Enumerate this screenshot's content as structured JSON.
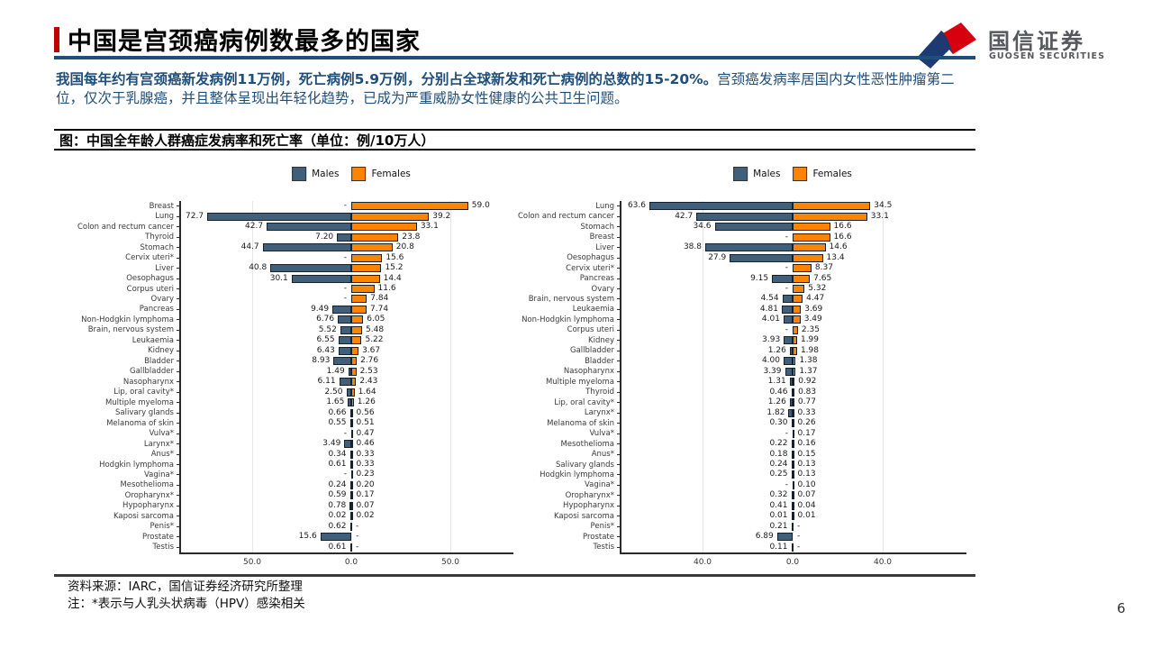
{
  "page": {
    "number": "6"
  },
  "header": {
    "title": "中国是宫颈癌病例数最多的国家",
    "logo": {
      "cn": "国信证券",
      "en": "GUOSEN SECURITIES"
    }
  },
  "intro": {
    "lead": "我国每年约有宫颈癌新发病例11万例，死亡病例5.9万例，分别占全球新发和死亡病例的总数的15-20%。",
    "rest": "宫颈癌发病率居国内女性恶性肿瘤第二位，仅次于乳腺癌，并且整体呈现出年轻化趋势，已成为严重威胁女性健康的公共卫生问题。"
  },
  "figure": {
    "caption": "图：中国全年龄人群癌症发病率和死亡率（单位：例/10万人）"
  },
  "footer": {
    "source": "资料来源：IARC，国信证券经济研究所整理",
    "note": "注：*表示与人乳头状病毒（HPV）感染相关"
  },
  "colors": {
    "male": "#3f5f7a",
    "female": "#fb8500",
    "accent_blue": "#1f4e79",
    "accent_red": "#c00000"
  },
  "chart_data": [
    {
      "type": "bar",
      "orientation": "horizontal-diverging",
      "title": "",
      "legend": [
        "Males",
        "Females"
      ],
      "axis_ticks": [
        "50.0",
        "0.0",
        "50.0"
      ],
      "tick_values": [
        -50,
        0,
        50
      ],
      "xlim": [
        -87,
        87
      ],
      "grid": true,
      "categories": [
        "Breast",
        "Lung",
        "Colon and rectum cancer",
        "Thyroid",
        "Stomach",
        "Cervix uteri*",
        "Liver",
        "Oesophagus",
        "Corpus uteri",
        "Ovary",
        "Pancreas",
        "Non-Hodgkin lymphoma",
        "Brain, nervous system",
        "Leukaemia",
        "Kidney",
        "Bladder",
        "Gallbladder",
        "Nasopharynx",
        "Lip, oral cavity*",
        "Multiple myeloma",
        "Salivary glands",
        "Melanoma of skin",
        "Vulva*",
        "Larynx*",
        "Anus*",
        "Hodgkin lymphoma",
        "Vagina*",
        "Mesothelioma",
        "Oropharynx*",
        "Hypopharynx",
        "Kaposi sarcoma",
        "Penis*",
        "Prostate",
        "Testis"
      ],
      "series": [
        {
          "name": "Males",
          "values": [
            null,
            72.7,
            42.7,
            7.2,
            44.7,
            null,
            40.8,
            30.1,
            null,
            null,
            9.49,
            6.76,
            5.52,
            6.55,
            6.43,
            8.93,
            1.49,
            6.11,
            2.5,
            1.65,
            0.66,
            0.55,
            null,
            3.49,
            0.34,
            0.61,
            null,
            0.24,
            0.59,
            0.78,
            0.02,
            0.62,
            15.6,
            0.61
          ],
          "labels": [
            "-",
            "72.7",
            "42.7",
            "7.20",
            "44.7",
            "-",
            "40.8",
            "30.1",
            "-",
            "-",
            "9.49",
            "6.76",
            "5.52",
            "6.55",
            "6.43",
            "8.93",
            "1.49",
            "6.11",
            "2.50",
            "1.65",
            "0.66",
            "0.55",
            "-",
            "3.49",
            "0.34",
            "0.61",
            "-",
            "0.24",
            "0.59",
            "0.78",
            "0.02",
            "0.62",
            "15.6",
            "0.61"
          ]
        },
        {
          "name": "Females",
          "values": [
            59.0,
            39.2,
            33.1,
            23.8,
            20.8,
            15.6,
            15.2,
            14.4,
            11.6,
            7.84,
            7.74,
            6.05,
            5.48,
            5.22,
            3.67,
            2.76,
            2.53,
            2.43,
            1.64,
            1.26,
            0.56,
            0.51,
            0.47,
            0.46,
            0.33,
            0.33,
            0.23,
            0.2,
            0.17,
            0.07,
            0.02,
            null,
            null,
            null
          ],
          "labels": [
            "59.0",
            "39.2",
            "33.1",
            "23.8",
            "20.8",
            "15.6",
            "15.2",
            "14.4",
            "11.6",
            "7.84",
            "7.74",
            "6.05",
            "5.48",
            "5.22",
            "3.67",
            "2.76",
            "2.53",
            "2.43",
            "1.64",
            "1.26",
            "0.56",
            "0.51",
            "0.47",
            "0.46",
            "0.33",
            "0.33",
            "0.23",
            "0.20",
            "0.17",
            "0.07",
            "0.02",
            "-",
            "-",
            "-"
          ]
        }
      ]
    },
    {
      "type": "bar",
      "orientation": "horizontal-diverging",
      "title": "",
      "legend": [
        "Males",
        "Females"
      ],
      "axis_ticks": [
        "40.0",
        "0.0",
        "40.0"
      ],
      "tick_values": [
        -40,
        0,
        40
      ],
      "xlim": [
        -77,
        77
      ],
      "grid": true,
      "categories": [
        "Lung",
        "Colon and rectum cancer",
        "Stomach",
        "Breast",
        "Liver",
        "Oesophagus",
        "Cervix uteri*",
        "Pancreas",
        "Ovary",
        "Brain, nervous system",
        "Leukaemia",
        "Non-Hodgkin lymphoma",
        "Corpus uteri",
        "Kidney",
        "Gallbladder",
        "Bladder",
        "Nasopharynx",
        "Multiple myeloma",
        "Thyroid",
        "Lip, oral cavity*",
        "Larynx*",
        "Melanoma of skin",
        "Vulva*",
        "Mesothelioma",
        "Anus*",
        "Salivary glands",
        "Hodgkin lymphoma",
        "Vagina*",
        "Oropharynx*",
        "Hypopharynx",
        "Kaposi sarcoma",
        "Penis*",
        "Prostate",
        "Testis"
      ],
      "series": [
        {
          "name": "Males",
          "values": [
            63.6,
            42.7,
            34.6,
            null,
            38.8,
            27.9,
            null,
            9.15,
            null,
            4.54,
            4.81,
            4.01,
            null,
            3.93,
            1.26,
            4.0,
            3.39,
            1.31,
            0.46,
            1.26,
            1.82,
            0.3,
            null,
            0.22,
            0.18,
            0.24,
            0.25,
            null,
            0.32,
            0.41,
            0.01,
            0.21,
            6.89,
            0.11
          ],
          "labels": [
            "63.6",
            "42.7",
            "34.6",
            "-",
            "38.8",
            "27.9",
            "-",
            "9.15",
            "-",
            "4.54",
            "4.81",
            "4.01",
            "-",
            "3.93",
            "1.26",
            "4.00",
            "3.39",
            "1.31",
            "0.46",
            "1.26",
            "1.82",
            "0.30",
            "-",
            "0.22",
            "0.18",
            "0.24",
            "0.25",
            "-",
            "0.32",
            "0.41",
            "0.01",
            "0.21",
            "6.89",
            "0.11"
          ]
        },
        {
          "name": "Females",
          "values": [
            34.5,
            33.1,
            16.6,
            16.6,
            14.6,
            13.4,
            8.37,
            7.65,
            5.32,
            4.47,
            3.69,
            3.49,
            2.35,
            1.99,
            1.98,
            1.38,
            1.37,
            0.92,
            0.83,
            0.77,
            0.33,
            0.26,
            0.17,
            0.16,
            0.15,
            0.13,
            0.13,
            0.1,
            0.07,
            0.04,
            0.01,
            null,
            null,
            null
          ],
          "labels": [
            "34.5",
            "33.1",
            "16.6",
            "16.6",
            "14.6",
            "13.4",
            "8.37",
            "7.65",
            "5.32",
            "4.47",
            "3.69",
            "3.49",
            "2.35",
            "1.99",
            "1.98",
            "1.38",
            "1.37",
            "0.92",
            "0.83",
            "0.77",
            "0.33",
            "0.26",
            "0.17",
            "0.16",
            "0.15",
            "0.13",
            "0.13",
            "0.10",
            "0.07",
            "0.04",
            "0.01",
            "-",
            "-",
            "-"
          ]
        }
      ]
    }
  ]
}
